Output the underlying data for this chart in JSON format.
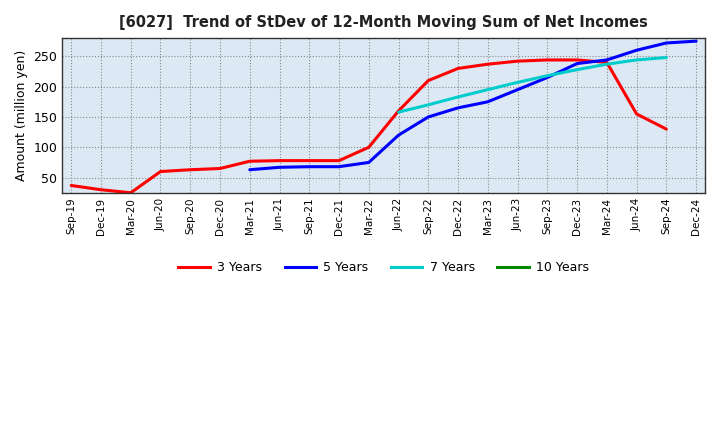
{
  "title": "[6027]  Trend of StDev of 12-Month Moving Sum of Net Incomes",
  "ylabel": "Amount (million yen)",
  "background_color": "#ffffff",
  "plot_bg_color": "#dce9f5",
  "grid_color": "#aaaaaa",
  "x_labels": [
    "Sep-19",
    "Dec-19",
    "Mar-20",
    "Jun-20",
    "Sep-20",
    "Dec-20",
    "Mar-21",
    "Jun-21",
    "Sep-21",
    "Dec-21",
    "Mar-22",
    "Jun-22",
    "Sep-22",
    "Dec-22",
    "Mar-23",
    "Jun-23",
    "Sep-23",
    "Dec-23",
    "Mar-24",
    "Jun-24",
    "Sep-24",
    "Dec-24"
  ],
  "ylim": [
    25,
    280
  ],
  "yticks": [
    50,
    100,
    150,
    200,
    250
  ],
  "series": {
    "3 Years": {
      "color": "#ff0000",
      "x_indices": [
        0,
        1,
        2,
        3,
        4,
        5,
        6,
        7,
        8,
        9,
        10,
        11,
        12,
        13,
        14,
        15,
        16,
        17,
        18,
        19,
        20
      ],
      "values": [
        37,
        30,
        25,
        60,
        63,
        65,
        77,
        78,
        78,
        78,
        100,
        160,
        210,
        230,
        237,
        242,
        244,
        244,
        240,
        155,
        130
      ]
    },
    "5 Years": {
      "color": "#0000ff",
      "x_indices": [
        6,
        7,
        8,
        9,
        10,
        11,
        12,
        13,
        14,
        15,
        16,
        17,
        18,
        19,
        20,
        21
      ],
      "values": [
        63,
        67,
        68,
        68,
        75,
        120,
        150,
        165,
        175,
        195,
        215,
        238,
        244,
        260,
        272,
        275
      ]
    },
    "7 Years": {
      "color": "#00cccc",
      "x_indices": [
        11,
        12,
        13,
        14,
        15,
        16,
        17,
        18,
        19,
        20
      ],
      "values": [
        158,
        170,
        183,
        195,
        207,
        218,
        228,
        237,
        244,
        248
      ]
    },
    "10 Years": {
      "color": "#008800",
      "x_indices": [],
      "values": []
    }
  },
  "legend_labels": [
    "3 Years",
    "5 Years",
    "7 Years",
    "10 Years"
  ],
  "legend_colors": [
    "#ff0000",
    "#0000ff",
    "#00cccc",
    "#008800"
  ]
}
